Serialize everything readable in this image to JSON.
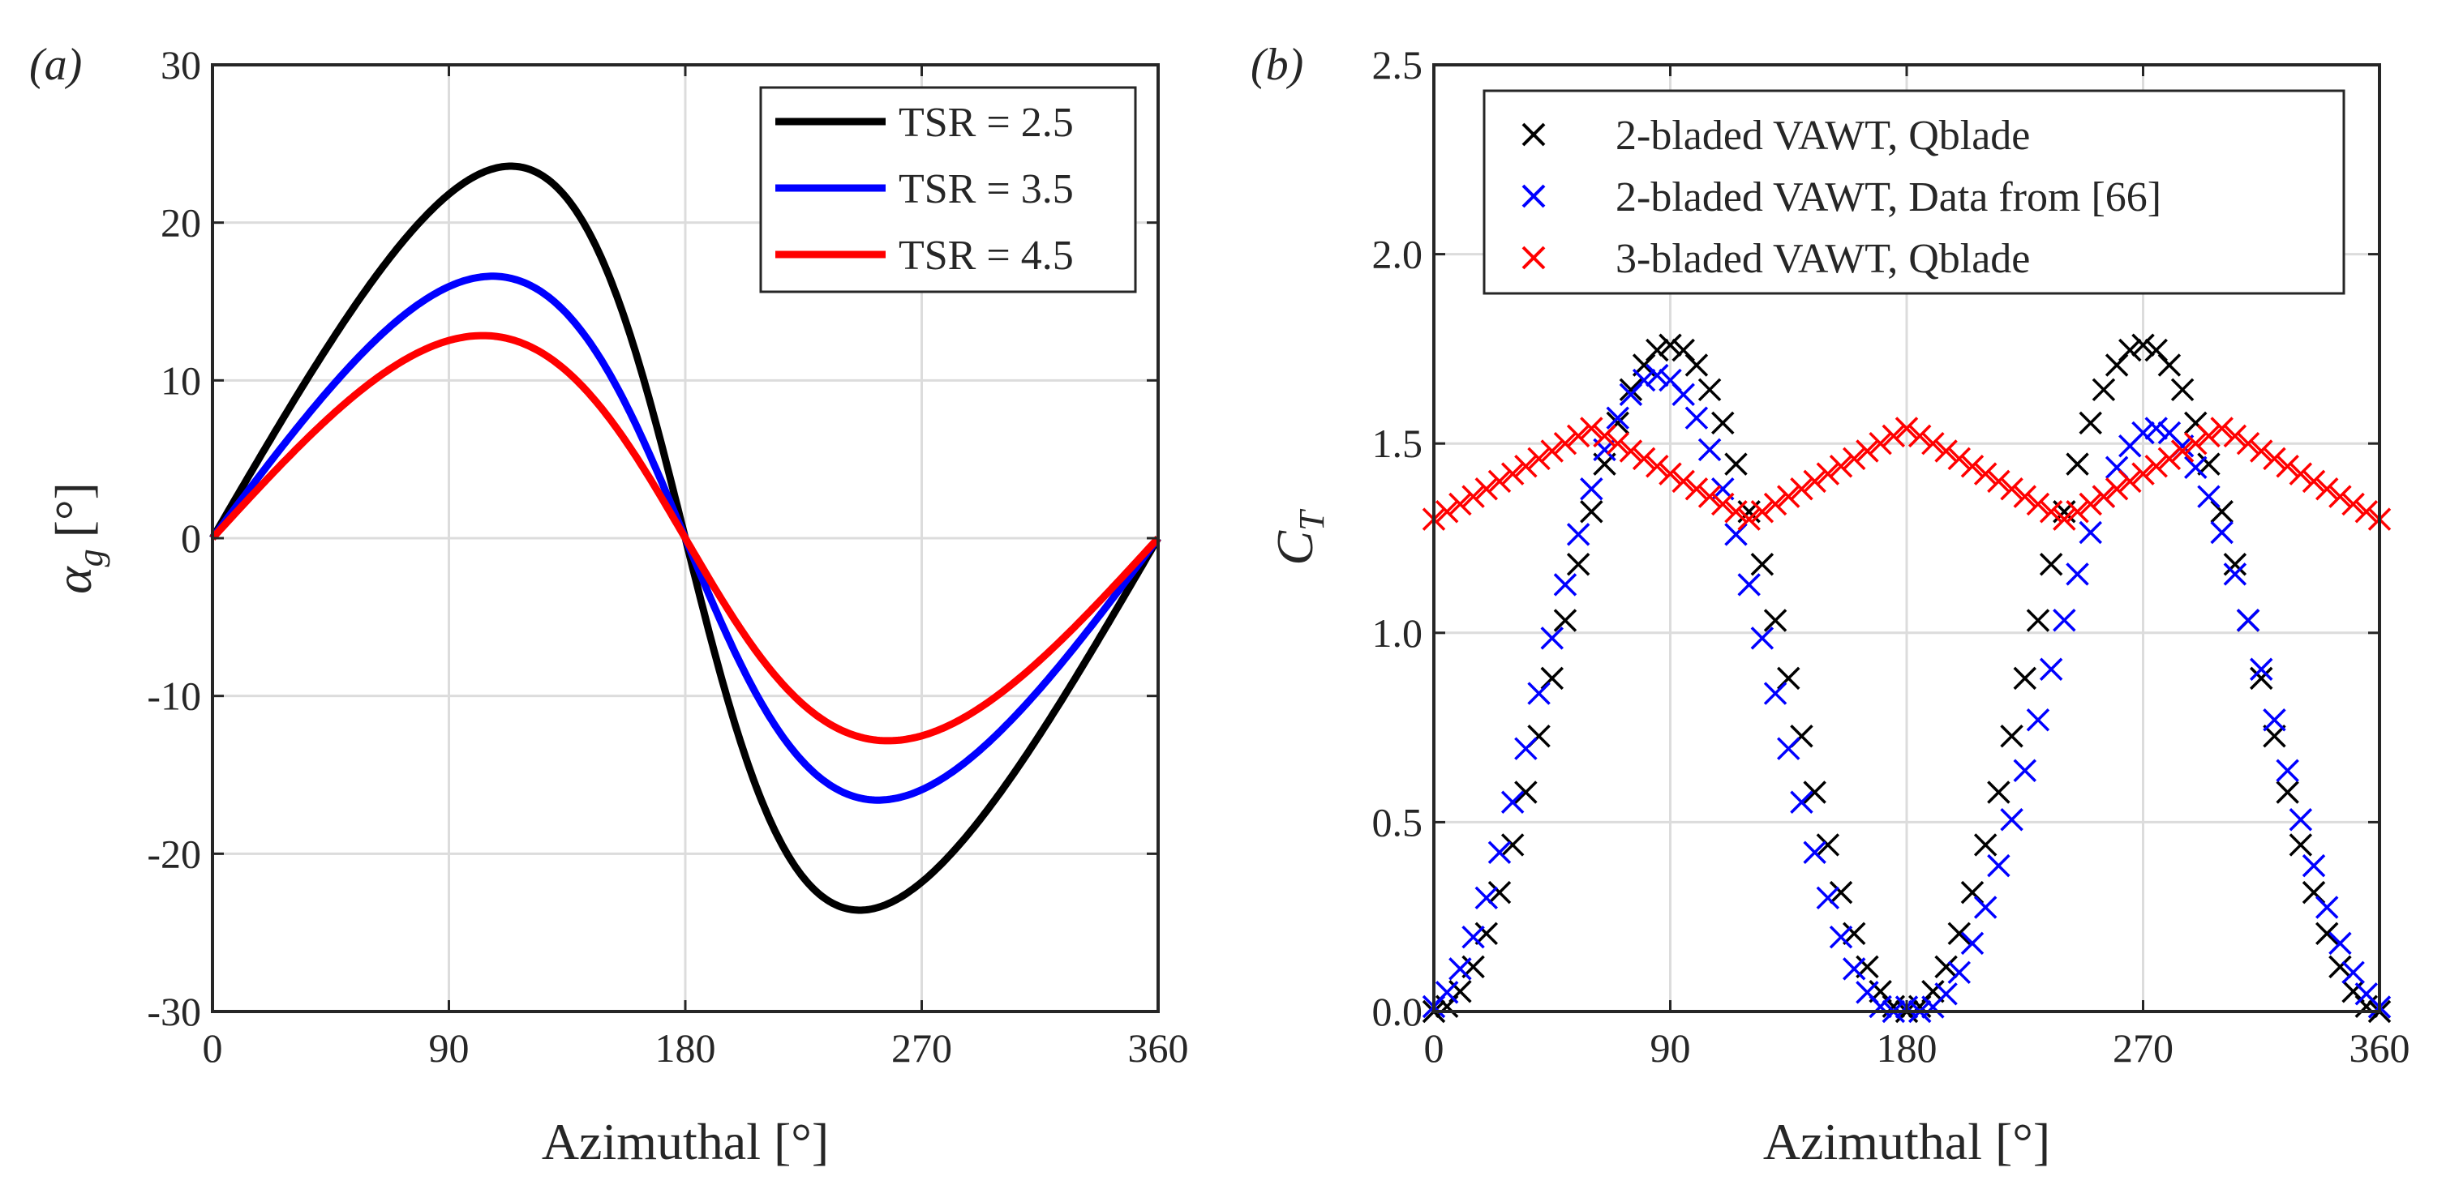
{
  "chart_data": [
    {
      "panel_label": "(a)",
      "type": "line",
      "xlabel": "Azimuthal [°]",
      "ylabel_symbol": "α",
      "ylabel_sub": "g",
      "ylabel_unit": "[°]",
      "xlim": [
        0,
        360
      ],
      "ylim": [
        -30,
        30
      ],
      "xticks": [
        0,
        90,
        180,
        270,
        360
      ],
      "xtick_labels": [
        "0",
        "90",
        "180",
        "270",
        "360"
      ],
      "yticks": [
        -30,
        -20,
        -10,
        0,
        10,
        20,
        30
      ],
      "ytick_labels": [
        "-30",
        "-20",
        "-10",
        "0",
        "10",
        "20",
        "30"
      ],
      "grid": true,
      "legend_position": "top-right",
      "series": [
        {
          "name": "TSR = 2.5",
          "color": "#000000",
          "tsr": 2.5,
          "peak_value": 23.6,
          "peak_at": 113,
          "trough_value": -23.6,
          "trough_at": 247
        },
        {
          "name": "TSR = 3.5",
          "color": "#0000ff",
          "tsr": 3.5,
          "peak_value": 16.6,
          "peak_at": 106,
          "trough_value": -16.6,
          "trough_at": 254
        },
        {
          "name": "TSR = 4.5",
          "color": "#ff0000",
          "tsr": 4.5,
          "peak_value": 12.8,
          "peak_at": 103,
          "trough_value": -12.8,
          "trough_at": 257
        }
      ]
    },
    {
      "panel_label": "(b)",
      "type": "scatter",
      "xlabel": "Azimuthal [°]",
      "ylabel_symbol": "C",
      "ylabel_sub": "T",
      "xlim": [
        0,
        360
      ],
      "ylim": [
        0,
        2.5
      ],
      "xticks": [
        0,
        90,
        180,
        270,
        360
      ],
      "xtick_labels": [
        "0",
        "90",
        "180",
        "270",
        "360"
      ],
      "yticks": [
        0,
        0.5,
        1,
        1.5,
        2,
        2.5
      ],
      "ytick_labels": [
        "0.0",
        "0.5",
        "1.0",
        "1.5",
        "2.0",
        "2.5"
      ],
      "grid": true,
      "legend_position": "top",
      "marker": "x",
      "series": [
        {
          "name": "2-bladed VAWT, Qblade",
          "color": "#000000",
          "x_step": 5,
          "description": "peaks of 1.76 at 90° and 270°, zero at 0°, 180°, 360°"
        },
        {
          "name": "2-bladed VAWT, Data from [66]",
          "color": "#0000ff",
          "x_step": 5,
          "description": "peaks of 1.68 near 85° and 1.54 near 275°, zero at 0°, 180°, 360°"
        },
        {
          "name": "3-bladed VAWT, Qblade",
          "color": "#ff0000",
          "x_step": 5,
          "description": "oscillates between 1.30 and 1.54, maxima at 60°, 180°, 300°"
        }
      ]
    }
  ]
}
